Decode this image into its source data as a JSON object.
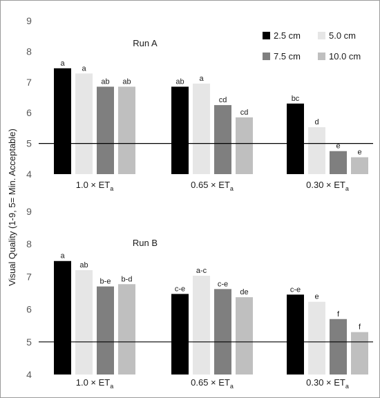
{
  "y_axis_label": "Visual Quality (1-9, 5= Min. Acceptable)",
  "legend": [
    {
      "name": "2.5 cm",
      "color": "#000000"
    },
    {
      "name": "5.0 cm",
      "color": "#e6e6e6"
    },
    {
      "name": "7.5 cm",
      "color": "#7f7f7f"
    },
    {
      "name": "10.0 cm",
      "color": "#bfbfbf"
    }
  ],
  "chart_data": [
    {
      "type": "bar",
      "title": "Run A",
      "categories": [
        "1.0 × ET",
        "0.65 × ET",
        "0.30 × ET"
      ],
      "category_subscript": "a",
      "ylim": [
        4,
        9
      ],
      "yticks": [
        4,
        5,
        6,
        7,
        8,
        9
      ],
      "reference_line": 5,
      "series": [
        {
          "name": "2.5 cm",
          "values": [
            7.45,
            6.85,
            6.3
          ],
          "labels": [
            "a",
            "ab",
            "bc"
          ]
        },
        {
          "name": "5.0 cm",
          "values": [
            7.28,
            6.95,
            5.53
          ],
          "labels": [
            "a",
            "a",
            "d"
          ]
        },
        {
          "name": "7.5 cm",
          "values": [
            6.85,
            6.25,
            4.75
          ],
          "labels": [
            "ab",
            "cd",
            "e"
          ]
        },
        {
          "name": "10.0 cm",
          "values": [
            6.85,
            5.85,
            4.55
          ],
          "labels": [
            "ab",
            "cd",
            "e"
          ]
        }
      ]
    },
    {
      "type": "bar",
      "title": "Run B",
      "categories": [
        "1.0 × ET",
        "0.65 × ET",
        "0.30 × ET"
      ],
      "category_subscript": "a",
      "ylim": [
        4,
        9
      ],
      "yticks": [
        4,
        5,
        6,
        7,
        8,
        9
      ],
      "reference_line": 5,
      "series": [
        {
          "name": "2.5 cm",
          "values": [
            7.48,
            6.47,
            6.45
          ],
          "labels": [
            "a",
            "c-e",
            "c-e"
          ]
        },
        {
          "name": "5.0 cm",
          "values": [
            7.2,
            7.03,
            6.23
          ],
          "labels": [
            "ab",
            "a-c",
            "e"
          ]
        },
        {
          "name": "7.5 cm",
          "values": [
            6.7,
            6.62,
            5.7
          ],
          "labels": [
            "b-e",
            "c-e",
            "f"
          ]
        },
        {
          "name": "10.0 cm",
          "values": [
            6.77,
            6.37,
            5.3
          ],
          "labels": [
            "b-d",
            "de",
            "f"
          ]
        }
      ]
    }
  ]
}
